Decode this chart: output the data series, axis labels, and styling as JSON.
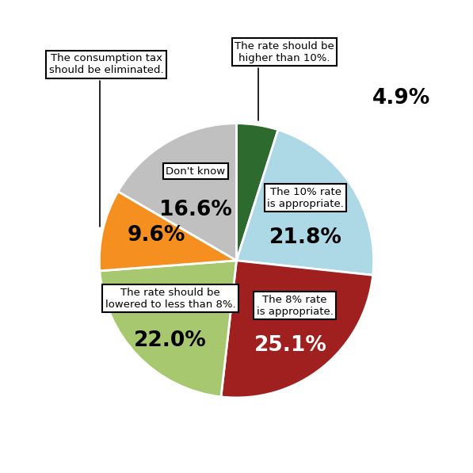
{
  "slices": [
    {
      "label": "The rate should be\nhigher than 10%.",
      "pct": 4.9,
      "color": "#2d6a2d",
      "pct_color": "black"
    },
    {
      "label": "The 10% rate\nis appropriate.",
      "pct": 21.8,
      "color": "#add8e6",
      "pct_color": "black"
    },
    {
      "label": "The 8% rate\nis appropriate.",
      "pct": 25.1,
      "color": "#a02020",
      "pct_color": "white"
    },
    {
      "label": "The rate should be\nlowered to less than 8%.",
      "pct": 22.0,
      "color": "#a8c870",
      "pct_color": "black"
    },
    {
      "label": "The consumption tax\nshould be eliminated.",
      "pct": 9.6,
      "color": "#f59020",
      "pct_color": "black"
    },
    {
      "label": "Don't know",
      "pct": 16.6,
      "color": "#c0c0c0",
      "pct_color": "black"
    }
  ],
  "background_color": "#ffffff",
  "figsize": [
    5.97,
    5.97
  ],
  "dpi": 100
}
